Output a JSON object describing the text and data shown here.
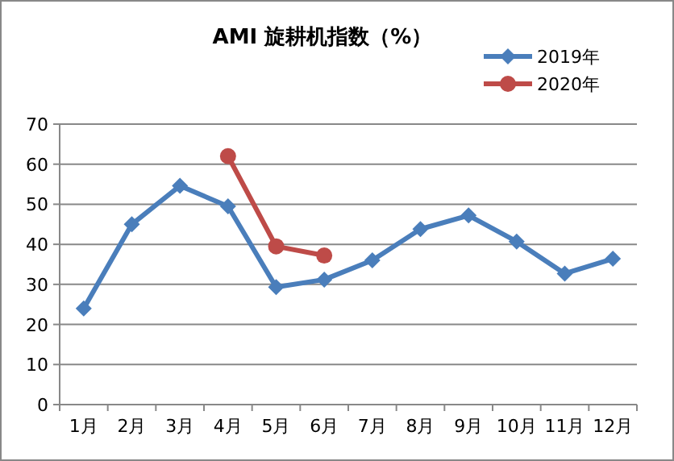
{
  "chart_data": {
    "type": "line",
    "title": "AMI 旋耕机指数（%）",
    "categories": [
      "1月",
      "2月",
      "3月",
      "4月",
      "5月",
      "6月",
      "7月",
      "8月",
      "9月",
      "10月",
      "11月",
      "12月"
    ],
    "series": [
      {
        "name": "2019年",
        "color": "#4a7ebb",
        "marker": "diamond",
        "values": [
          24,
          45,
          54.6,
          49.5,
          29.3,
          31.2,
          36,
          43.8,
          47.2,
          40.7,
          32.7,
          36.4
        ]
      },
      {
        "name": "2020年",
        "color": "#be4b48",
        "marker": "circle",
        "values": [
          null,
          null,
          null,
          62,
          39.5,
          37.2,
          null,
          null,
          null,
          null,
          null,
          null
        ]
      }
    ],
    "ylim": [
      0,
      70
    ],
    "yticks": [
      0,
      10,
      20,
      30,
      40,
      50,
      60,
      70
    ],
    "grid": "y",
    "legend": "top right",
    "line_style": "solid"
  }
}
